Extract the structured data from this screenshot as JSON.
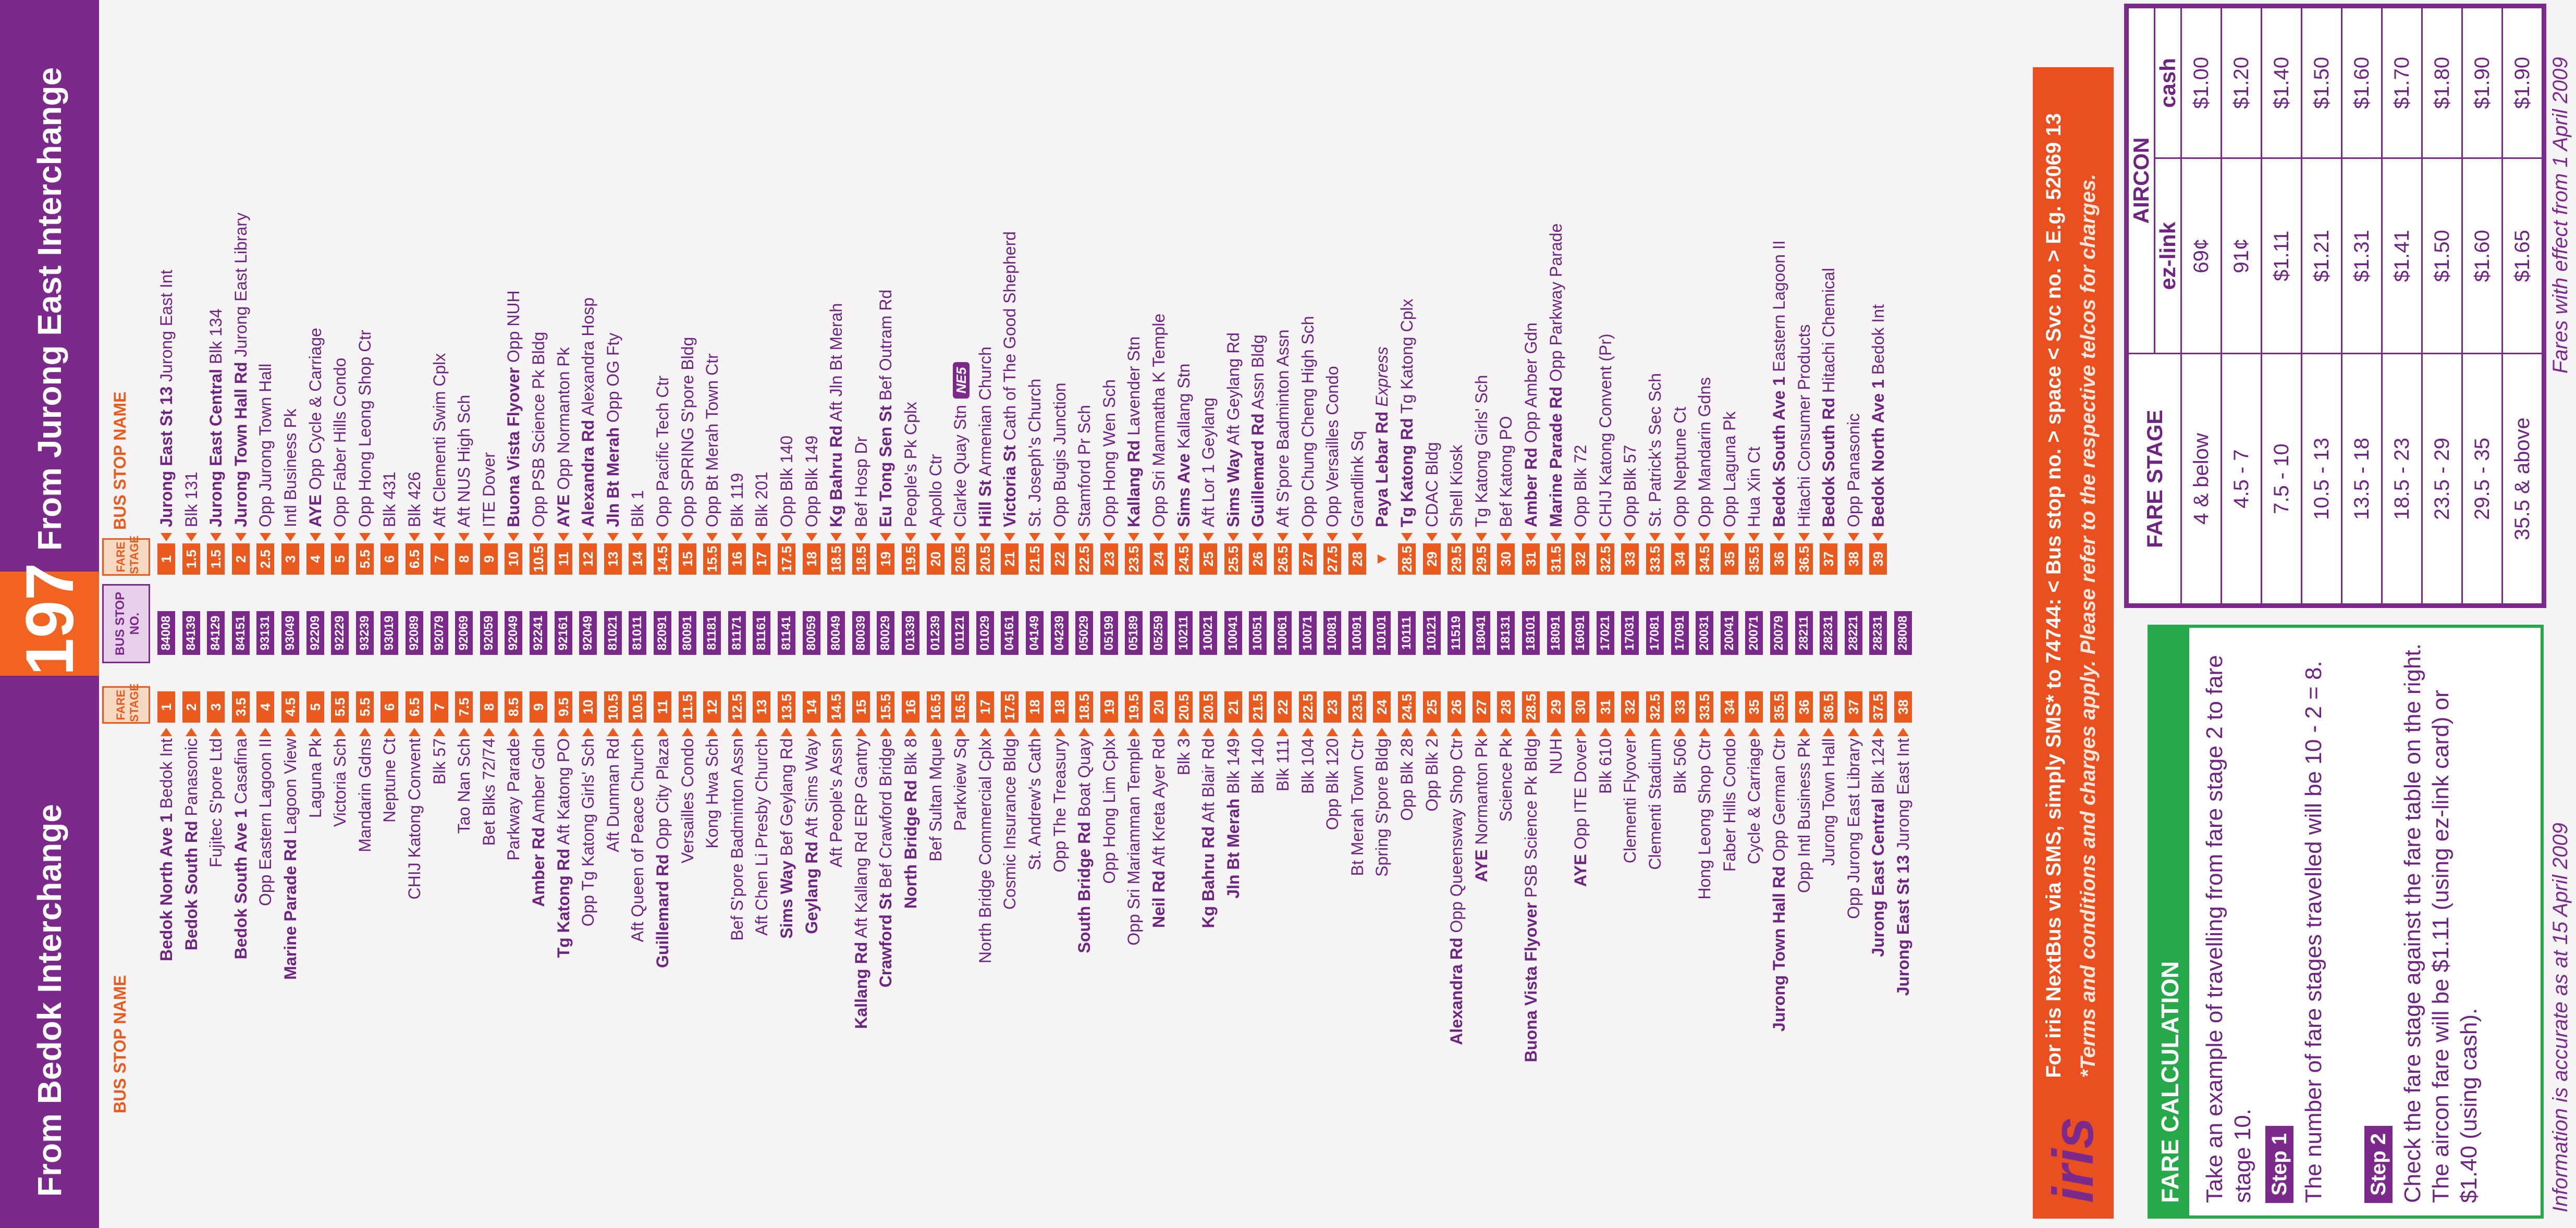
{
  "header": {
    "left_title": "From Bedok Interchange",
    "route": "197",
    "right_title": "From Jurong East Interchange"
  },
  "captions": {
    "bus_stop_name": "BUS STOP NAME",
    "fare_stage": "FARE STAGE",
    "bus_stop_no": "BUS STOP NO."
  },
  "left_stops": [
    {
      "name": "Bedok North Ave 1",
      "bold": true,
      "sub": "Bedok Int",
      "fs": "1"
    },
    {
      "name": "Bedok South Rd",
      "bold": true,
      "sub": "Panasonic",
      "fs": "2"
    },
    {
      "name": "Fujitec S'pore Ltd",
      "bold": false,
      "sub": "",
      "fs": "3"
    },
    {
      "name": "Bedok South Ave 1",
      "bold": true,
      "sub": "Casafina",
      "fs": "3.5"
    },
    {
      "name": "Opp Eastern Lagoon II",
      "bold": false,
      "sub": "",
      "fs": "4"
    },
    {
      "name": "Marine Parade Rd",
      "bold": true,
      "sub": "Lagoon View",
      "fs": "4.5"
    },
    {
      "name": "Laguna Pk",
      "bold": false,
      "sub": "",
      "fs": "5"
    },
    {
      "name": "Victoria Sch",
      "bold": false,
      "sub": "",
      "fs": "5.5"
    },
    {
      "name": "Mandarin Gdns",
      "bold": false,
      "sub": "",
      "fs": "5.5"
    },
    {
      "name": "Neptune Ct",
      "bold": false,
      "sub": "",
      "fs": "6"
    },
    {
      "name": "CHIJ Katong Convent",
      "bold": false,
      "sub": "",
      "fs": "6.5"
    },
    {
      "name": "Blk 57",
      "bold": false,
      "sub": "",
      "fs": "7"
    },
    {
      "name": "Tao Nan Sch",
      "bold": false,
      "sub": "",
      "fs": "7.5"
    },
    {
      "name": "Bet Blks 72/74",
      "bold": false,
      "sub": "",
      "fs": "8"
    },
    {
      "name": "Parkway Parade",
      "bold": false,
      "sub": "",
      "fs": "8.5"
    },
    {
      "name": "Amber Rd",
      "bold": true,
      "sub": "Amber Gdn",
      "fs": "9"
    },
    {
      "name": "Tg Katong Rd",
      "bold": true,
      "sub": "Aft Katong PO",
      "fs": "9.5"
    },
    {
      "name": "Opp Tg Katong Girls' Sch",
      "bold": false,
      "sub": "",
      "fs": "10"
    },
    {
      "name": "Aft Dunman Rd",
      "bold": false,
      "sub": "",
      "fs": "10.5"
    },
    {
      "name": "Aft Queen of Peace Church",
      "bold": false,
      "sub": "",
      "fs": "10.5"
    },
    {
      "name": "Guillemard Rd",
      "bold": true,
      "sub": "Opp City Plaza",
      "fs": "11"
    },
    {
      "name": "Versailles Condo",
      "bold": false,
      "sub": "",
      "fs": "11.5"
    },
    {
      "name": "Kong Hwa Sch",
      "bold": false,
      "sub": "",
      "fs": "12"
    },
    {
      "name": "Bef S'pore Badminton Assn",
      "bold": false,
      "sub": "",
      "fs": "12.5"
    },
    {
      "name": "Aft Chen Li Presby Church",
      "bold": false,
      "sub": "",
      "fs": "13"
    },
    {
      "name": "Sims Way",
      "bold": true,
      "sub": "Bef Geylang Rd",
      "fs": "13.5"
    },
    {
      "name": "Geylang Rd",
      "bold": true,
      "sub": "Aft Sims Way",
      "fs": "14"
    },
    {
      "name": "Aft People's Assn",
      "bold": false,
      "sub": "",
      "fs": "14.5"
    },
    {
      "name": "Kallang Rd",
      "bold": true,
      "sub": "Aft Kallang Rd ERP Gantry",
      "fs": "15"
    },
    {
      "name": "Crawford St",
      "bold": true,
      "sub": "Bef Crawford Bridge",
      "fs": "15.5"
    },
    {
      "name": "North Bridge Rd",
      "bold": true,
      "sub": "Blk 8",
      "fs": "16"
    },
    {
      "name": "Bef Sultan Mque",
      "bold": false,
      "sub": "",
      "fs": "16.5"
    },
    {
      "name": "Parkview Sq",
      "bold": false,
      "sub": "",
      "fs": "16.5"
    },
    {
      "name": "North Bridge Commercial Cplx",
      "bold": false,
      "sub": "",
      "fs": "17"
    },
    {
      "name": "Cosmic Insurance Bldg",
      "bold": false,
      "sub": "",
      "fs": "17.5"
    },
    {
      "name": "St. Andrew's Cath",
      "bold": false,
      "sub": "",
      "fs": "18"
    },
    {
      "name": "Opp The Treasury",
      "bold": false,
      "sub": "",
      "fs": "18"
    },
    {
      "name": "South Bridge Rd",
      "bold": true,
      "sub": "Boat Quay",
      "fs": "18.5"
    },
    {
      "name": "Opp Hong Lim Cplx",
      "bold": false,
      "sub": "",
      "fs": "19"
    },
    {
      "name": "Opp Sri Mariamman Temple",
      "bold": false,
      "sub": "",
      "fs": "19.5"
    },
    {
      "name": "Neil Rd",
      "bold": true,
      "sub": "Aft Kreta Ayer Rd",
      "fs": "20"
    },
    {
      "name": "Blk 3",
      "bold": false,
      "sub": "",
      "fs": "20.5"
    },
    {
      "name": "Kg Bahru Rd",
      "bold": true,
      "sub": "Aft Blair Rd",
      "fs": "20.5"
    },
    {
      "name": "Jln Bt Merah",
      "bold": true,
      "sub": "Blk 149",
      "fs": "21"
    },
    {
      "name": "Blk 140",
      "bold": false,
      "sub": "",
      "fs": "21.5"
    },
    {
      "name": "Blk 111",
      "bold": false,
      "sub": "",
      "fs": "22"
    },
    {
      "name": "Blk 104",
      "bold": false,
      "sub": "",
      "fs": "22.5"
    },
    {
      "name": "Opp Blk 120",
      "bold": false,
      "sub": "",
      "fs": "23"
    },
    {
      "name": "Bt Merah Town Ctr",
      "bold": false,
      "sub": "",
      "fs": "23.5"
    },
    {
      "name": "Spring S'pore Bldg",
      "bold": false,
      "sub": "",
      "fs": "24"
    },
    {
      "name": "Opp Blk 28",
      "bold": false,
      "sub": "",
      "fs": "24.5"
    },
    {
      "name": "Opp Blk 2",
      "bold": false,
      "sub": "",
      "fs": "25"
    },
    {
      "name": "Alexandra Rd",
      "bold": true,
      "sub": "Opp Queensway Shop Ctr",
      "fs": "26"
    },
    {
      "name": "AYE",
      "bold": true,
      "sub": "Normanton Pk",
      "fs": "27"
    },
    {
      "name": "Science Pk",
      "bold": false,
      "sub": "",
      "fs": "28"
    },
    {
      "name": "Buona Vista Flyover",
      "bold": true,
      "sub": "PSB Science Pk Bldg",
      "fs": "28.5"
    },
    {
      "name": "NUH",
      "bold": false,
      "sub": "",
      "fs": "29"
    },
    {
      "name": "AYE",
      "bold": true,
      "sub": "Opp ITE Dover",
      "fs": "30"
    },
    {
      "name": "Blk 610",
      "bold": false,
      "sub": "",
      "fs": "31"
    },
    {
      "name": "Clementi Flyover",
      "bold": false,
      "sub": "",
      "fs": "32"
    },
    {
      "name": "Clementi Stadium",
      "bold": false,
      "sub": "",
      "fs": "32.5"
    },
    {
      "name": "Blk 506",
      "bold": false,
      "sub": "",
      "fs": "33"
    },
    {
      "name": "Hong Leong Shop Ctr",
      "bold": false,
      "sub": "",
      "fs": "33.5"
    },
    {
      "name": "Faber Hills Condo",
      "bold": false,
      "sub": "",
      "fs": "34"
    },
    {
      "name": "Cycle & Carriage",
      "bold": false,
      "sub": "",
      "fs": "35"
    },
    {
      "name": "Jurong Town Hall Rd",
      "bold": true,
      "sub": "Opp German Ctr",
      "fs": "35.5"
    },
    {
      "name": "Opp Intl Business Pk",
      "bold": false,
      "sub": "",
      "fs": "36"
    },
    {
      "name": "Jurong Town Hall",
      "bold": false,
      "sub": "",
      "fs": "36.5"
    },
    {
      "name": "Opp Jurong East Library",
      "bold": false,
      "sub": "",
      "fs": "37"
    },
    {
      "name": "Jurong East Central",
      "bold": true,
      "sub": "Blk 124",
      "fs": "37.5"
    },
    {
      "name": "Jurong East St 13",
      "bold": true,
      "sub": "Jurong East Int",
      "fs": "38"
    }
  ],
  "stop_codes": [
    "84008",
    "84139",
    "84129",
    "84151",
    "93131",
    "93049",
    "92209",
    "92229",
    "93239",
    "93019",
    "92089",
    "92079",
    "92069",
    "92059",
    "92049",
    "92241",
    "92161",
    "92049",
    "81021",
    "81011",
    "82091",
    "80091",
    "81181",
    "81171",
    "81161",
    "81141",
    "80059",
    "80049",
    "80039",
    "80029",
    "01339",
    "01239",
    "01121",
    "01029",
    "04161",
    "04149",
    "04239",
    "05029",
    "05199",
    "05189",
    "05259",
    "10211",
    "10021",
    "10041",
    "10051",
    "10061",
    "10071",
    "10081",
    "10091",
    "10101",
    "10111",
    "10121",
    "11519",
    "18041",
    "18131",
    "18101",
    "18091",
    "16091",
    "17021",
    "17031",
    "17081",
    "17091",
    "20031",
    "20041",
    "20071",
    "20079",
    "28211",
    "28231",
    "28221",
    "28231",
    "28008"
  ],
  "right_stops": [
    {
      "name": "Jurong East St 13",
      "bold": true,
      "sub": "Jurong East Int",
      "fs": "1"
    },
    {
      "name": "Blk 131",
      "bold": false,
      "sub": "",
      "fs": "1.5"
    },
    {
      "name": "Jurong East Central",
      "bold": true,
      "sub": "Blk 134",
      "fs": "1.5"
    },
    {
      "name": "Jurong Town Hall Rd",
      "bold": true,
      "sub": "Jurong East Library",
      "fs": "2"
    },
    {
      "name": "Opp Jurong Town Hall",
      "bold": false,
      "sub": "",
      "fs": "2.5"
    },
    {
      "name": "Intl Business Pk",
      "bold": false,
      "sub": "",
      "fs": "3"
    },
    {
      "name": "AYE",
      "bold": true,
      "sub": "Opp Cycle & Carriage",
      "fs": "4"
    },
    {
      "name": "Opp Faber Hills Condo",
      "bold": false,
      "sub": "",
      "fs": "5"
    },
    {
      "name": "Opp Hong Leong Shop Ctr",
      "bold": false,
      "sub": "",
      "fs": "5.5"
    },
    {
      "name": "Blk 431",
      "bold": false,
      "sub": "",
      "fs": "6"
    },
    {
      "name": "Blk 426",
      "bold": false,
      "sub": "",
      "fs": "6.5"
    },
    {
      "name": "Aft Clementi Swim Cplx",
      "bold": false,
      "sub": "",
      "fs": "7"
    },
    {
      "name": "Aft NUS High Sch",
      "bold": false,
      "sub": "",
      "fs": "8"
    },
    {
      "name": "ITE Dover",
      "bold": false,
      "sub": "",
      "fs": "9"
    },
    {
      "name": "Buona Vista Flyover",
      "bold": true,
      "sub": "Opp NUH",
      "fs": "10"
    },
    {
      "name": "Opp PSB Science Pk Bldg",
      "bold": false,
      "sub": "",
      "fs": "10.5"
    },
    {
      "name": "AYE",
      "bold": true,
      "sub": "Opp Normanton Pk",
      "fs": "11"
    },
    {
      "name": "Alexandra Rd",
      "bold": true,
      "sub": "Alexandra Hosp",
      "fs": "12"
    },
    {
      "name": "Jln Bt Merah",
      "bold": true,
      "sub": "Opp OG Fty",
      "fs": "13"
    },
    {
      "name": "Blk 1",
      "bold": false,
      "sub": "",
      "fs": "14"
    },
    {
      "name": "Opp Pacific Tech Ctr",
      "bold": false,
      "sub": "",
      "fs": "14.5"
    },
    {
      "name": "Opp SPRING S'pore Bldg",
      "bold": false,
      "sub": "",
      "fs": "15"
    },
    {
      "name": "Opp Bt Merah Town Ctr",
      "bold": false,
      "sub": "",
      "fs": "15.5"
    },
    {
      "name": "Blk 119",
      "bold": false,
      "sub": "",
      "fs": "16"
    },
    {
      "name": "Blk 201",
      "bold": false,
      "sub": "",
      "fs": "17"
    },
    {
      "name": "Opp Blk 140",
      "bold": false,
      "sub": "",
      "fs": "17.5"
    },
    {
      "name": "Opp Blk 149",
      "bold": false,
      "sub": "",
      "fs": "18"
    },
    {
      "name": "Kg Bahru Rd",
      "bold": true,
      "sub": "Aft Jln Bt Merah",
      "fs": "18.5"
    },
    {
      "name": "Bef Hosp Dr",
      "bold": false,
      "sub": "",
      "fs": "18.5"
    },
    {
      "name": "Eu Tong Sen St",
      "bold": true,
      "sub": "Bef Outram Rd",
      "fs": "19"
    },
    {
      "name": "People's Pk Cplx",
      "bold": false,
      "sub": "",
      "fs": "19.5"
    },
    {
      "name": "Apollo Ctr",
      "bold": false,
      "sub": "",
      "fs": "20"
    },
    {
      "name": "Clarke Quay Stn",
      "bold": false,
      "sub": "",
      "fs": "20.5",
      "badge": "NE5"
    },
    {
      "name": "Hill St",
      "bold": true,
      "sub": "Armenian Church",
      "fs": "20.5"
    },
    {
      "name": "Victoria St",
      "bold": true,
      "sub": "Cath of The Good Shepherd",
      "fs": "21"
    },
    {
      "name": "St. Joseph's Church",
      "bold": false,
      "sub": "",
      "fs": "21.5"
    },
    {
      "name": "Opp Bugis Junction",
      "bold": false,
      "sub": "",
      "fs": "22"
    },
    {
      "name": "Stamford Pr Sch",
      "bold": false,
      "sub": "",
      "fs": "22.5"
    },
    {
      "name": "Opp Hong Wen Sch",
      "bold": false,
      "sub": "",
      "fs": "23"
    },
    {
      "name": "Kallang Rd",
      "bold": true,
      "sub": "Lavender Stn",
      "fs": "23.5"
    },
    {
      "name": "Opp Sri Manmatha K Temple",
      "bold": false,
      "sub": "",
      "fs": "24"
    },
    {
      "name": "Sims Ave",
      "bold": true,
      "sub": "Kallang Stn",
      "fs": "24.5"
    },
    {
      "name": "Aft Lor 1 Geylang",
      "bold": false,
      "sub": "",
      "fs": "25"
    },
    {
      "name": "Sims Way",
      "bold": true,
      "sub": "Aft Geylang Rd",
      "fs": "25.5"
    },
    {
      "name": "Guillemard Rd",
      "bold": true,
      "sub": "Assn Bldg",
      "fs": "26"
    },
    {
      "name": "Aft S'pore Badminton Assn",
      "bold": false,
      "sub": "",
      "fs": "26.5"
    },
    {
      "name": "Opp Chung Cheng High Sch",
      "bold": false,
      "sub": "",
      "fs": "27"
    },
    {
      "name": "Opp Versailles Condo",
      "bold": false,
      "sub": "",
      "fs": "27.5"
    },
    {
      "name": "Grandlink Sq",
      "bold": false,
      "sub": "",
      "fs": "28"
    },
    {
      "name": "Paya Lebar Rd",
      "bold": true,
      "sub": "Express",
      "fs": "▼",
      "express": true
    },
    {
      "name": "Tg Katong Rd",
      "bold": true,
      "sub": "Tg Katong Cplx",
      "fs": "28.5"
    },
    {
      "name": "CDAC Bldg",
      "bold": false,
      "sub": "",
      "fs": "29"
    },
    {
      "name": "Shell Kiosk",
      "bold": false,
      "sub": "",
      "fs": "29.5"
    },
    {
      "name": "Tg Katong Girls' Sch",
      "bold": false,
      "sub": "",
      "fs": "29.5"
    },
    {
      "name": "Bef Katong PO",
      "bold": false,
      "sub": "",
      "fs": "30"
    },
    {
      "name": "Amber Rd",
      "bold": true,
      "sub": "Opp Amber Gdn",
      "fs": "31"
    },
    {
      "name": "Marine Parade Rd",
      "bold": true,
      "sub": "Opp Parkway Parade",
      "fs": "31.5"
    },
    {
      "name": "Opp Blk 72",
      "bold": false,
      "sub": "",
      "fs": "32"
    },
    {
      "name": "CHIJ Katong Convent (Pr)",
      "bold": false,
      "sub": "",
      "fs": "32.5"
    },
    {
      "name": "Opp Blk 57",
      "bold": false,
      "sub": "",
      "fs": "33"
    },
    {
      "name": "St. Patrick's Sec Sch",
      "bold": false,
      "sub": "",
      "fs": "33.5"
    },
    {
      "name": "Opp Neptune Ct",
      "bold": false,
      "sub": "",
      "fs": "34"
    },
    {
      "name": "Opp Mandarin Gdns",
      "bold": false,
      "sub": "",
      "fs": "34.5"
    },
    {
      "name": "Opp Laguna Pk",
      "bold": false,
      "sub": "",
      "fs": "35"
    },
    {
      "name": "Hua Xin Ct",
      "bold": false,
      "sub": "",
      "fs": "35.5"
    },
    {
      "name": "Bedok South Ave 1",
      "bold": true,
      "sub": "Eastern Lagoon II",
      "fs": "36"
    },
    {
      "name": "Hitachi Consumer Products",
      "bold": false,
      "sub": "",
      "fs": "36.5"
    },
    {
      "name": "Bedok South Rd",
      "bold": true,
      "sub": "Hitachi Chemical",
      "fs": "37"
    },
    {
      "name": "Opp Panasonic",
      "bold": false,
      "sub": "",
      "fs": "38"
    },
    {
      "name": "Bedok North Ave 1",
      "bold": true,
      "sub": "Bedok Int",
      "fs": "39"
    }
  ],
  "calc": {
    "title": "FARE CALCULATION",
    "intro": "Take an example of travelling from fare stage 2 to fare stage 10.",
    "step1_label": "Step 1",
    "step1_text": "The number of fare stages travelled will be 10 - 2 = 8.",
    "step2_label": "Step 2",
    "step2_text": "Check the fare stage against the fare table on the right. The aircon fare will be $1.11 (using ez-link card) or $1.40 (using cash)."
  },
  "iris": {
    "logo": "iris",
    "line1": "For iris NextBus via SMS, simply SMS* to 74744: < Bus stop no. > space < Svc no. > E.g. 52069 13",
    "line2": "*Terms and conditions and charges apply. Please refer to the respective telcos for charges."
  },
  "fare_table": {
    "col_stage": "FARE STAGE",
    "col_group": "AIRCON",
    "col_ezlink": "ez-link",
    "col_cash": "cash",
    "rows": [
      {
        "stage": "4 & below",
        "ezlink": "69¢",
        "cash": "$1.00"
      },
      {
        "stage": "4.5 - 7",
        "ezlink": "91¢",
        "cash": "$1.20"
      },
      {
        "stage": "7.5 - 10",
        "ezlink": "$1.11",
        "cash": "$1.40"
      },
      {
        "stage": "10.5 - 13",
        "ezlink": "$1.21",
        "cash": "$1.50"
      },
      {
        "stage": "13.5 - 18",
        "ezlink": "$1.31",
        "cash": "$1.60"
      },
      {
        "stage": "18.5 - 23",
        "ezlink": "$1.41",
        "cash": "$1.70"
      },
      {
        "stage": "23.5 - 29",
        "ezlink": "$1.50",
        "cash": "$1.80"
      },
      {
        "stage": "29.5 - 35",
        "ezlink": "$1.60",
        "cash": "$1.90"
      },
      {
        "stage": "35.5 & above",
        "ezlink": "$1.65",
        "cash": "$1.90"
      }
    ]
  },
  "footer": {
    "accuracy": "Information is accurate as at 15 April 2009",
    "effect": "Fares with effect from 1 April 2009"
  }
}
